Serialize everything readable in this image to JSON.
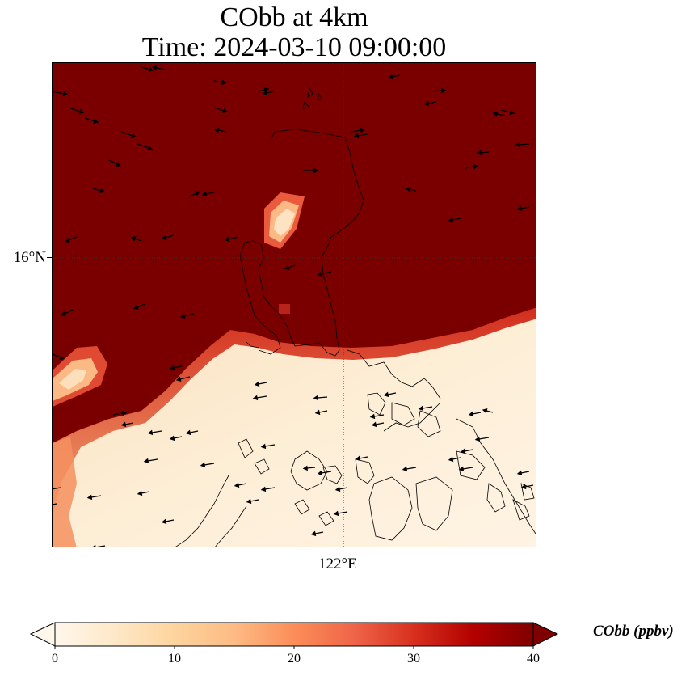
{
  "title": {
    "line1": "CObb at 4km",
    "line2": "Time: 2024-03-10 09:00:00"
  },
  "axes": {
    "lat_tick_label": "16°N",
    "lon_tick_label": "122°E",
    "gridlines": "dotted"
  },
  "colorbar": {
    "label": "CObb (ppbv)",
    "min": 0,
    "max": 40,
    "extend": "both",
    "ticks": [
      "0",
      "10",
      "20",
      "30",
      "40"
    ],
    "colormap": "OrRd",
    "colors": [
      "#fff7ec",
      "#fee8c8",
      "#fdd49e",
      "#fdbb84",
      "#fc8d59",
      "#ef6548",
      "#d7301f",
      "#b30000",
      "#7f0000"
    ]
  },
  "map": {
    "region": "Northern Luzon, Philippines",
    "field": "CObb",
    "overlays": [
      "coastlines",
      "wind-vectors"
    ],
    "high_value_color": "#7a0000",
    "low_value_color": "#fdeed6"
  }
}
